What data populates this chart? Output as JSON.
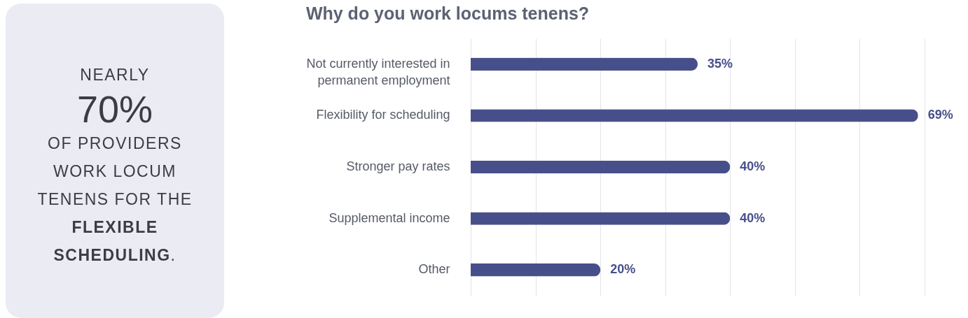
{
  "chart_data": [
    {
      "type": "other",
      "annotations": [
        "NEARLY",
        "70%",
        "OF PROVIDERS WORK LOCUM TENENS FOR THE",
        "FLEXIBLE SCHEDULING",
        "."
      ]
    },
    {
      "type": "bar",
      "orientation": "horizontal",
      "title": "Why do you work locums tenens?",
      "categories": [
        "Not currently interested in permanent employment",
        "Flexibility for scheduling",
        "Stronger pay rates",
        "Supplemental income",
        "Other"
      ],
      "values": [
        35,
        69,
        40,
        40,
        20
      ],
      "value_labels": [
        "35%",
        "69%",
        "40%",
        "40%",
        "20%"
      ],
      "color": "#474f8b",
      "xlim": [
        0,
        70
      ],
      "xticks": [
        {
          "value": 0,
          "label": null
        },
        {
          "value": 10,
          "label": null
        },
        {
          "value": 20,
          "label": null
        },
        {
          "value": 30,
          "label": null
        },
        {
          "value": 40,
          "label": null
        },
        {
          "value": 50,
          "label": null
        },
        {
          "value": 60,
          "label": null
        },
        {
          "value": 70,
          "label": null
        }
      ],
      "tick_labels": "y",
      "grid": "x"
    }
  ]
}
